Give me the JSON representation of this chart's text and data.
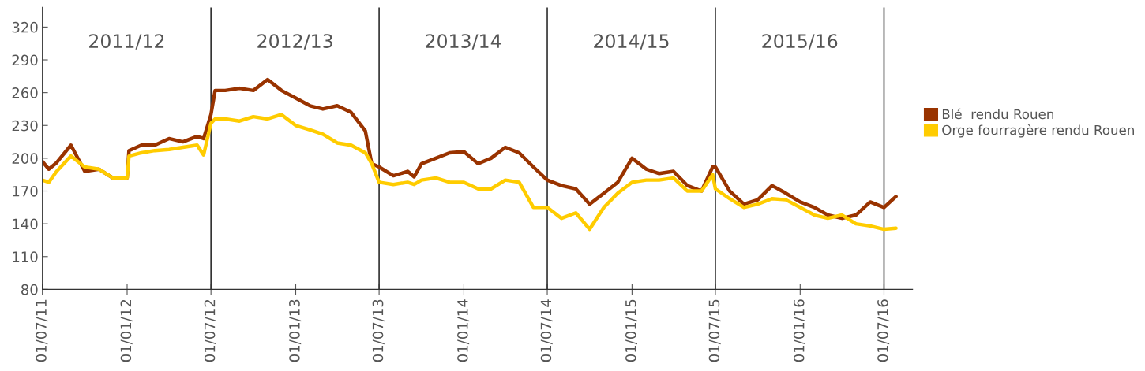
{
  "chart_data": {
    "type": "line",
    "x": [
      "2011-07-01",
      "2011-07-15",
      "2011-08-01",
      "2011-09-01",
      "2011-10-01",
      "2011-11-01",
      "2011-12-01",
      "2012-01-01",
      "2012-01-05",
      "2012-02-01",
      "2012-03-01",
      "2012-04-01",
      "2012-05-01",
      "2012-06-01",
      "2012-06-15",
      "2012-07-01",
      "2012-07-10",
      "2012-08-01",
      "2012-09-01",
      "2012-10-01",
      "2012-11-01",
      "2012-12-01",
      "2013-01-01",
      "2013-02-01",
      "2013-03-01",
      "2013-04-01",
      "2013-05-01",
      "2013-06-01",
      "2013-06-15",
      "2013-07-01",
      "2013-08-01",
      "2013-09-01",
      "2013-09-15",
      "2013-10-01",
      "2013-11-01",
      "2013-12-01",
      "2014-01-01",
      "2014-02-01",
      "2014-03-01",
      "2014-04-01",
      "2014-05-01",
      "2014-06-01",
      "2014-07-01",
      "2014-08-01",
      "2014-09-01",
      "2014-10-01",
      "2014-11-01",
      "2014-12-01",
      "2015-01-01",
      "2015-02-01",
      "2015-03-01",
      "2015-04-01",
      "2015-05-01",
      "2015-06-01",
      "2015-06-25",
      "2015-07-01",
      "2015-08-01",
      "2015-09-01",
      "2015-10-01",
      "2015-11-01",
      "2015-12-01",
      "2016-01-01",
      "2016-02-01",
      "2016-03-01",
      "2016-04-01",
      "2016-05-01",
      "2016-06-01",
      "2016-07-01",
      "2016-07-27"
    ],
    "series": [
      {
        "name": "Blé  rendu Rouen",
        "color": "#993300",
        "values": [
          197,
          190,
          196,
          212,
          188,
          190,
          182,
          182,
          207,
          212,
          212,
          218,
          215,
          220,
          218,
          240,
          262,
          262,
          264,
          262,
          272,
          262,
          255,
          248,
          245,
          248,
          242,
          225,
          195,
          192,
          184,
          188,
          183,
          195,
          200,
          205,
          206,
          195,
          200,
          210,
          205,
          192,
          180,
          175,
          172,
          158,
          168,
          178,
          200,
          190,
          186,
          188,
          175,
          170,
          192,
          192,
          170,
          158,
          162,
          175,
          168,
          160,
          155,
          148,
          145,
          148,
          160,
          155,
          165
        ]
      },
      {
        "name": "Orge fourragère rendu Rouen",
        "color": "#ffcc00",
        "values": [
          180,
          178,
          188,
          202,
          192,
          190,
          182,
          182,
          202,
          205,
          207,
          208,
          210,
          212,
          203,
          232,
          236,
          236,
          234,
          238,
          236,
          240,
          230,
          226,
          222,
          214,
          212,
          205,
          195,
          178,
          176,
          178,
          176,
          180,
          182,
          178,
          178,
          172,
          172,
          180,
          178,
          155,
          155,
          145,
          150,
          135,
          155,
          168,
          178,
          180,
          180,
          182,
          170,
          170,
          185,
          172,
          163,
          155,
          158,
          163,
          162,
          155,
          148,
          145,
          148,
          140,
          138,
          135,
          136
        ]
      }
    ],
    "xlim": [
      "2011-07-01",
      "2016-09-01"
    ],
    "ylim": [
      80,
      338
    ],
    "yticks": [
      80,
      110,
      140,
      170,
      200,
      230,
      260,
      290,
      320
    ],
    "xticks": [
      {
        "value": "2011-07-01",
        "label": "01/07/11"
      },
      {
        "value": "2012-01-01",
        "label": "01/01/12"
      },
      {
        "value": "2012-07-01",
        "label": "01/07/12"
      },
      {
        "value": "2013-01-01",
        "label": "01/01/13"
      },
      {
        "value": "2013-07-01",
        "label": "01/07/13"
      },
      {
        "value": "2014-01-01",
        "label": "01/01/14"
      },
      {
        "value": "2014-07-01",
        "label": "01/07/14"
      },
      {
        "value": "2015-01-01",
        "label": "01/01/15"
      },
      {
        "value": "2015-07-01",
        "label": "01/07/15"
      },
      {
        "value": "2016-01-01",
        "label": "01/01/16"
      },
      {
        "value": "2016-07-01",
        "label": "01/07/16"
      }
    ],
    "ref_lines": [
      {
        "axis": "x",
        "value": "2012-07-01",
        "color": "#333333"
      },
      {
        "axis": "x",
        "value": "2013-07-01",
        "color": "#333333"
      },
      {
        "axis": "x",
        "value": "2014-07-01",
        "color": "#333333"
      },
      {
        "axis": "x",
        "value": "2015-07-01",
        "color": "#333333"
      },
      {
        "axis": "x",
        "value": "2016-07-01",
        "color": "#333333"
      }
    ],
    "annotations": [
      "2011/12",
      "2012/13",
      "2013/14",
      "2014/15",
      "2015/16"
    ],
    "grid": false,
    "legend": "right",
    "line_style": "solid"
  }
}
